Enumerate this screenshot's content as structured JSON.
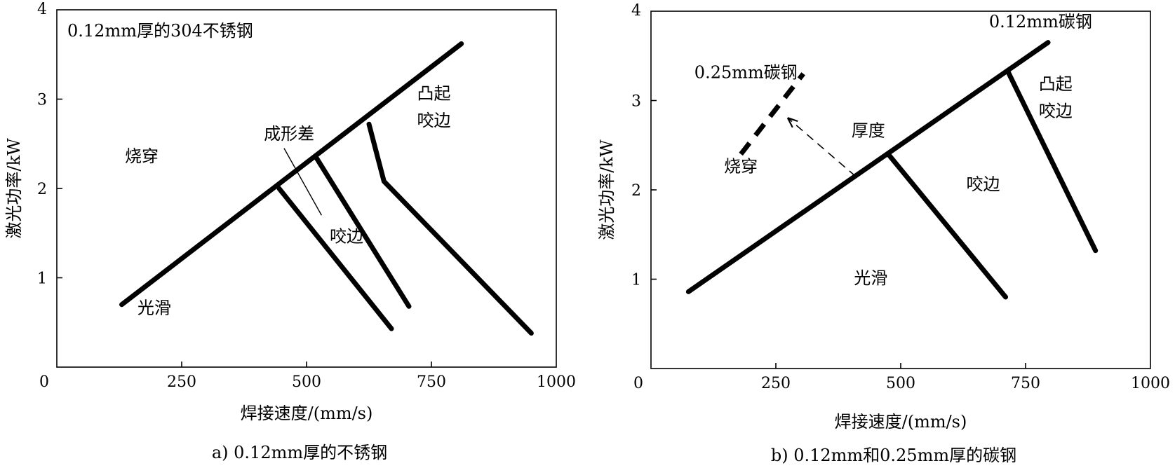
{
  "chart_data": [
    {
      "id": "a",
      "type": "line",
      "caption": "a) 0.12mm厚的不锈钢",
      "xlabel": "焊接速度/(mm/s)",
      "ylabel": "激光功率/kW",
      "xlim": [
        0,
        1000
      ],
      "ylim": [
        0,
        4
      ],
      "xticks": [
        0,
        250,
        500,
        750,
        1000
      ],
      "yticks": [
        1,
        2,
        3,
        4
      ],
      "grid": false,
      "title": "0.12mm厚的304不锈钢",
      "series": [
        {
          "points": [
            [
              130,
              0.7
            ],
            [
              810,
              3.62
            ]
          ],
          "style": "solid"
        },
        {
          "points": [
            [
              445,
              2.0
            ],
            [
              670,
              0.43
            ]
          ],
          "style": "solid"
        },
        {
          "points": [
            [
              520,
              2.34
            ],
            [
              705,
              0.68
            ]
          ],
          "style": "solid"
        },
        {
          "points": [
            [
              625,
              2.72
            ],
            [
              655,
              2.08
            ],
            [
              950,
              0.38
            ]
          ],
          "style": "solid"
        }
      ],
      "region_labels": [
        {
          "text": "烧穿",
          "x": 170,
          "y": 2.3
        },
        {
          "text": "光滑",
          "x": 195,
          "y": 0.6
        },
        {
          "text": "凸起",
          "x": 755,
          "y": 3.0
        },
        {
          "text": "咬边",
          "x": 755,
          "y": 2.7
        },
        {
          "text": "咬边",
          "x": 580,
          "y": 1.4
        },
        {
          "text": "成形差",
          "x": 465,
          "y": 2.55
        }
      ],
      "annotations": [
        {
          "text": "成形差",
          "pointer_from": [
            455,
            2.45
          ],
          "pointer_to": [
            530,
            1.7
          ]
        }
      ]
    },
    {
      "id": "b",
      "type": "line",
      "caption": "b) 0.12mm和0.25mm厚的碳钢",
      "xlabel": "焊接速度/(mm/s)",
      "ylabel": "激光功率/kW",
      "xlim": [
        0,
        1000
      ],
      "ylim": [
        0,
        4
      ],
      "xticks": [
        0,
        250,
        500,
        750,
        1000
      ],
      "yticks": [
        1,
        2,
        3,
        4
      ],
      "grid": false,
      "series": [
        {
          "name": "0.12mm碳钢",
          "points": [
            [
              75,
              0.86
            ],
            [
              795,
              3.65
            ]
          ],
          "style": "solid"
        },
        {
          "points": [
            [
              475,
              2.4
            ],
            [
              710,
              0.8
            ]
          ],
          "style": "solid"
        },
        {
          "points": [
            [
              715,
              3.32
            ],
            [
              890,
              1.32
            ]
          ],
          "style": "solid"
        },
        {
          "name": "0.25mm碳钢",
          "points": [
            [
              180,
              2.4
            ],
            [
              305,
              3.3
            ]
          ],
          "style": "dashed"
        }
      ],
      "region_labels": [
        {
          "text": "烧穿",
          "x": 180,
          "y": 2.2
        },
        {
          "text": "光滑",
          "x": 440,
          "y": 0.95
        },
        {
          "text": "咬边",
          "x": 665,
          "y": 2.0
        },
        {
          "text": "凸起",
          "x": 810,
          "y": 3.12
        },
        {
          "text": "咬边",
          "x": 810,
          "y": 2.82
        },
        {
          "text": "厚度",
          "x": 435,
          "y": 2.6
        },
        {
          "text": "0.12mm碳钢",
          "x": 780,
          "y": 3.82
        },
        {
          "text": "0.25mm碳钢",
          "x": 190,
          "y": 3.25
        }
      ],
      "annotations": [
        {
          "text": "厚度",
          "arrow_from": [
            410,
            2.15
          ],
          "arrow_to": [
            275,
            2.8
          ],
          "style": "dashed"
        }
      ]
    }
  ],
  "colors": {
    "line": "#000000",
    "background": "#ffffff"
  }
}
